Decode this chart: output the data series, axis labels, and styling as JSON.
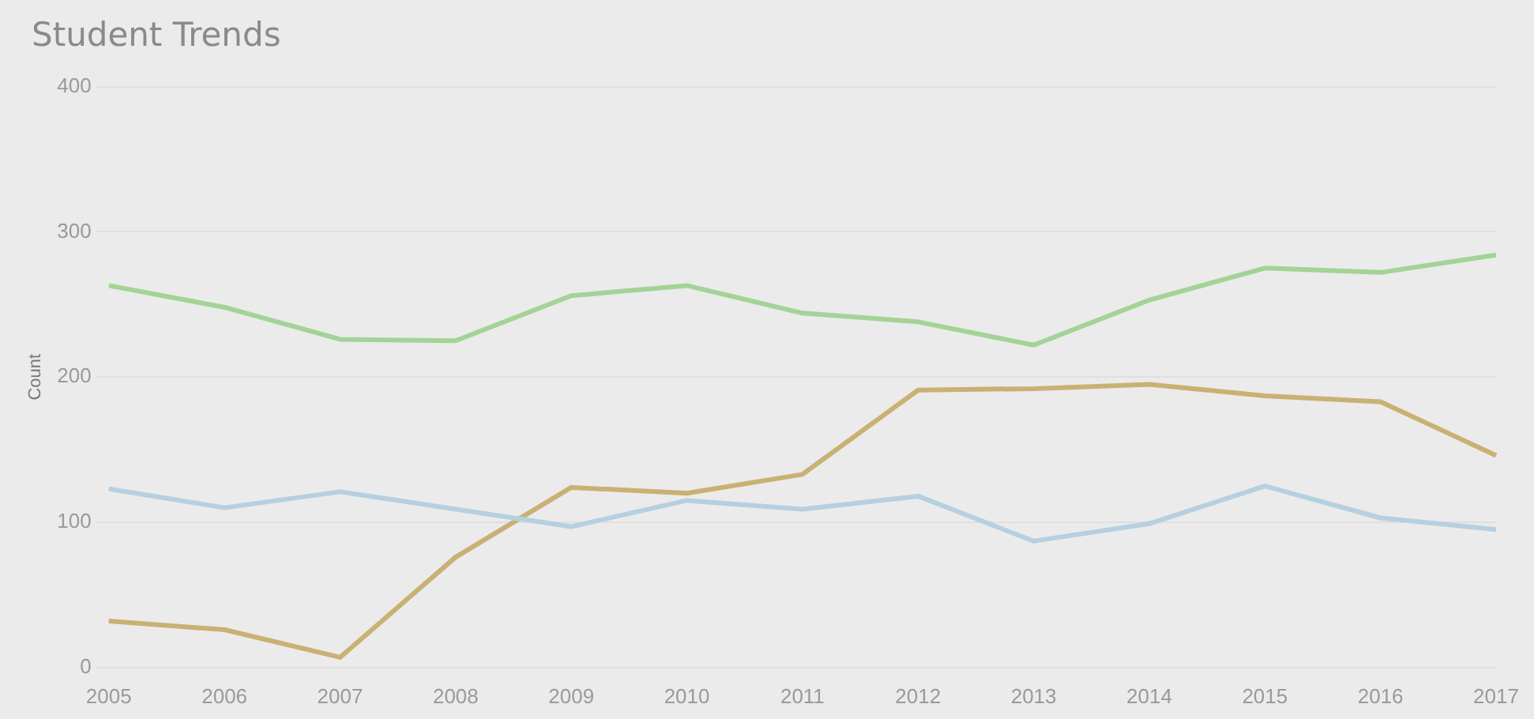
{
  "chart_data": {
    "type": "line",
    "title": "Student Trends",
    "ylabel": "Count",
    "categories": [
      "2005",
      "2006",
      "2007",
      "2008",
      "2009",
      "2010",
      "2011",
      "2012",
      "2013",
      "2014",
      "2015",
      "2016",
      "2017"
    ],
    "series": [
      {
        "color": "#a3d397",
        "values": [
          263,
          248,
          226,
          225,
          256,
          263,
          244,
          238,
          222,
          253,
          275,
          272,
          284
        ]
      },
      {
        "color": "#b5d0e0",
        "values": [
          123,
          110,
          121,
          109,
          97,
          115,
          109,
          118,
          87,
          99,
          125,
          103,
          95
        ]
      },
      {
        "color": "#c9b174",
        "values": [
          32,
          26,
          7,
          76,
          124,
          120,
          133,
          191,
          192,
          195,
          187,
          183,
          146
        ]
      }
    ],
    "ylim": [
      0,
      400
    ],
    "yticks": [
      0,
      100,
      200,
      300,
      400
    ],
    "grid": "y",
    "legend": false,
    "marker": "none",
    "line_style": "solid"
  }
}
